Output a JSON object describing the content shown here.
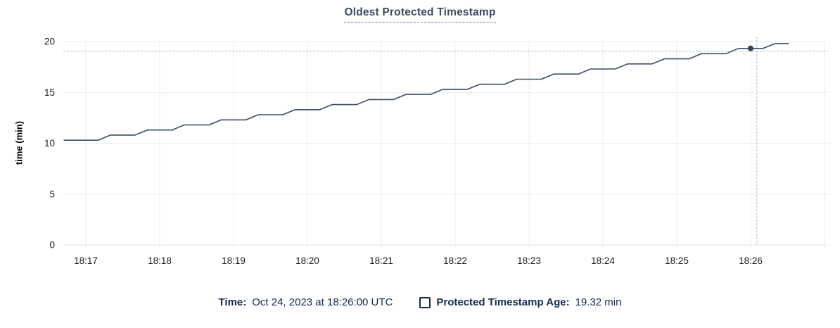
{
  "colors": {
    "line": "#3e4c66",
    "point": "#323f57",
    "crosshair": "#a9bdd1",
    "grid": "#ececec",
    "axis_line": "#e3e3e3",
    "title": "#3c4a61",
    "title_underline": "#64789c",
    "legend_text": "#16294e",
    "axis_text": "#1c1c1c"
  },
  "chart_data": {
    "type": "line",
    "title": "Oldest Protected Timestamp",
    "xlabel": "",
    "ylabel": "time (min)",
    "ylim": [
      0,
      20
    ],
    "yticks": [
      0,
      5,
      10,
      15,
      20
    ],
    "xticks": [
      "18:17",
      "18:18",
      "18:19",
      "18:20",
      "18:21",
      "18:22",
      "18:23",
      "18:24",
      "18:25",
      "18:26"
    ],
    "grid": true,
    "legend_position": "bottom",
    "series": [
      {
        "name": "Protected Timestamp Age",
        "unit": "min",
        "points": [
          [
            "18:16:42",
            10.3
          ],
          [
            "18:17:10",
            10.3
          ],
          [
            "18:17:20",
            10.8
          ],
          [
            "18:17:40",
            10.8
          ],
          [
            "18:17:50",
            11.3
          ],
          [
            "18:18:10",
            11.3
          ],
          [
            "18:18:20",
            11.8
          ],
          [
            "18:18:40",
            11.8
          ],
          [
            "18:18:50",
            12.3
          ],
          [
            "18:19:10",
            12.3
          ],
          [
            "18:19:20",
            12.8
          ],
          [
            "18:19:40",
            12.8
          ],
          [
            "18:19:50",
            13.3
          ],
          [
            "18:20:10",
            13.3
          ],
          [
            "18:20:20",
            13.8
          ],
          [
            "18:20:40",
            13.8
          ],
          [
            "18:20:50",
            14.3
          ],
          [
            "18:21:10",
            14.3
          ],
          [
            "18:21:20",
            14.8
          ],
          [
            "18:21:40",
            14.8
          ],
          [
            "18:21:50",
            15.3
          ],
          [
            "18:22:10",
            15.3
          ],
          [
            "18:22:20",
            15.8
          ],
          [
            "18:22:40",
            15.8
          ],
          [
            "18:22:50",
            16.3
          ],
          [
            "18:23:10",
            16.3
          ],
          [
            "18:23:20",
            16.8
          ],
          [
            "18:23:40",
            16.8
          ],
          [
            "18:23:50",
            17.3
          ],
          [
            "18:24:10",
            17.3
          ],
          [
            "18:24:20",
            17.8
          ],
          [
            "18:24:40",
            17.8
          ],
          [
            "18:24:50",
            18.3
          ],
          [
            "18:25:10",
            18.3
          ],
          [
            "18:25:20",
            18.8
          ],
          [
            "18:25:40",
            18.8
          ],
          [
            "18:25:50",
            19.32
          ],
          [
            "18:26:10",
            19.32
          ],
          [
            "18:26:20",
            19.8
          ],
          [
            "18:26:31",
            19.8
          ]
        ]
      }
    ],
    "highlight_point": {
      "time": "18:26:00",
      "value": 19.32
    },
    "crosshair": {
      "time": "18:26:05",
      "value": 19.05
    }
  },
  "legend": {
    "time_label": "Time:",
    "time_value": "Oct 24, 2023 at 18:26:00 UTC",
    "series_label": "Protected Timestamp Age:",
    "series_value": "19.32 min"
  }
}
